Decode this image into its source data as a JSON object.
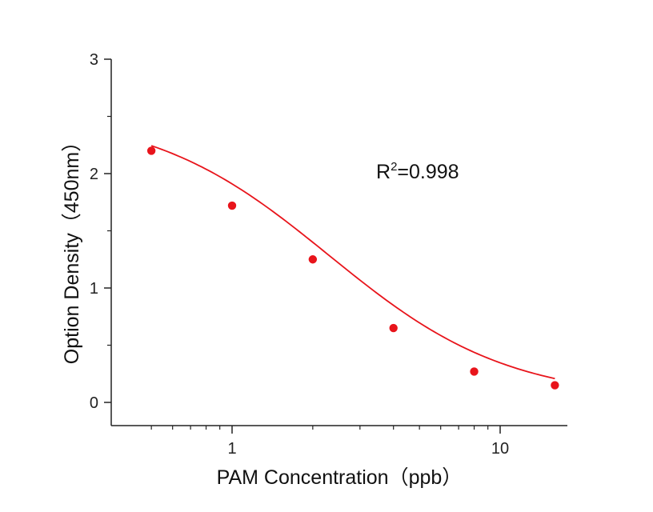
{
  "chart_data": {
    "type": "scatter",
    "x_scale": "log",
    "xlabel": "PAM Concentration（ppb）",
    "ylabel": "Option Density（450nm）",
    "xlim": [
      0.42,
      16.5
    ],
    "ylim": [
      -0.2,
      3
    ],
    "x_ticks": [
      1,
      10
    ],
    "x_tick_labels": [
      "1",
      "10"
    ],
    "y_ticks": [
      0,
      1,
      2,
      3
    ],
    "y_tick_labels": [
      "0",
      "1",
      "2",
      "3"
    ],
    "grid": false,
    "series": [
      {
        "x": [
          0.5,
          1,
          2,
          4,
          8,
          16
        ],
        "y": [
          2.2,
          1.72,
          1.25,
          0.65,
          0.27,
          0.15
        ]
      }
    ],
    "fit": {
      "type": "4PL",
      "top": 2.55,
      "bottom": 0.02,
      "ec50": 2.3,
      "hill": 1.3,
      "x_range": [
        0.5,
        16
      ]
    },
    "annotation": {
      "base": "R",
      "sup": "2",
      "rest": "=0.998"
    },
    "colors": {
      "series": "#e8141b",
      "axis": "#222222"
    }
  }
}
